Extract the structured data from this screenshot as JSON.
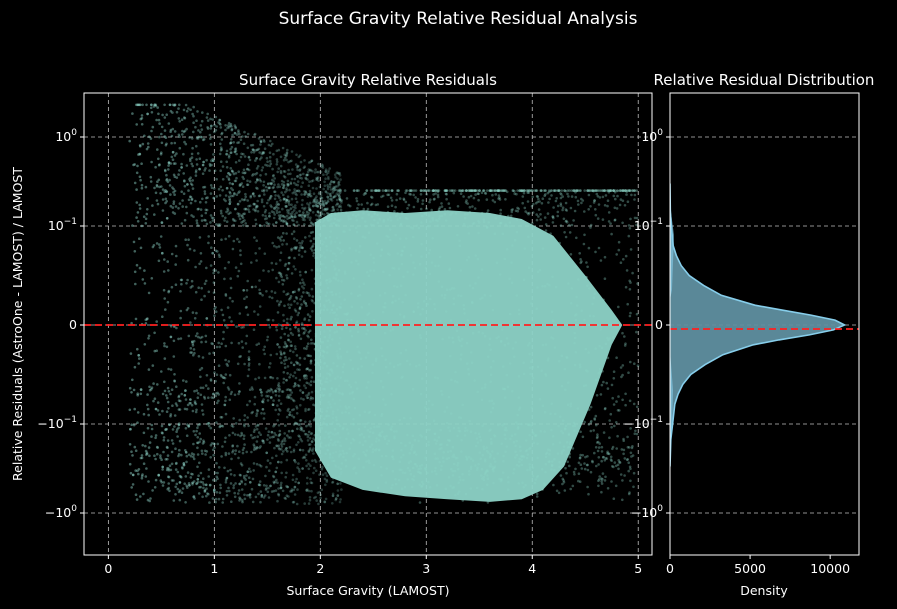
{
  "figure": {
    "suptitle": "Surface Gravity Relative Residual Analysis"
  },
  "chart_data": [
    {
      "type": "scatter",
      "title": "Surface Gravity Relative Residuals",
      "xlabel": "Surface Gravity (LAMOST)",
      "ylabel": "Relative Residuals (AstroOne - LAMOST) / LAMOST",
      "xlim": [
        -0.23,
        5.13
      ],
      "ylim": [
        -2.5,
        2.5
      ],
      "yscale": "symlog",
      "linthresh": 0.1,
      "x_ticks": [
        {
          "value": 0,
          "label": "0"
        },
        {
          "value": 1,
          "label": "1"
        },
        {
          "value": 2,
          "label": "2"
        },
        {
          "value": 3,
          "label": "3"
        },
        {
          "value": 4,
          "label": "4"
        },
        {
          "value": 5,
          "label": "5"
        }
      ],
      "y_ticks": [
        {
          "value": 1,
          "base": "10",
          "exp": "0",
          "sign": ""
        },
        {
          "value": 0.1,
          "base": "10",
          "exp": "−1",
          "sign": ""
        },
        {
          "value": 0,
          "base": "0",
          "exp": "",
          "sign": ""
        },
        {
          "value": -0.1,
          "base": "10",
          "exp": "−1",
          "sign": "−"
        },
        {
          "value": -1,
          "base": "10",
          "exp": "0",
          "sign": "−"
        }
      ],
      "reference_line": {
        "y": 0,
        "color": "#ff2020",
        "style": "dashed"
      },
      "point_color": "#8dd3c7",
      "grid": true,
      "dense_region": {
        "x_range": [
          1.9,
          4.9
        ],
        "y_range": [
          -0.75,
          0.15
        ]
      },
      "sparse_region": {
        "x_range": [
          0.2,
          1.9
        ],
        "y_range": [
          -0.8,
          2.3
        ]
      }
    },
    {
      "type": "histogram",
      "orientation": "horizontal",
      "title": "Relative Residual Distribution",
      "xlabel": "Density",
      "xlim": [
        0,
        11800
      ],
      "ylim": [
        -2.5,
        2.5
      ],
      "yscale": "symlog",
      "x_ticks": [
        {
          "value": 0,
          "label": "0"
        },
        {
          "value": 5000,
          "label": "5000"
        },
        {
          "value": 10000,
          "label": "10000"
        }
      ],
      "fill_color": "#5f8fa0",
      "kde_color": "#87ceeb",
      "mean_line": {
        "y": -0.002,
        "color": "#ff2020",
        "style": "dashed"
      },
      "grid": true,
      "density_profile": [
        {
          "y": -0.3,
          "d": 0
        },
        {
          "y": -0.15,
          "d": 50
        },
        {
          "y": -0.1,
          "d": 160
        },
        {
          "y": -0.08,
          "d": 300
        },
        {
          "y": -0.07,
          "d": 500
        },
        {
          "y": -0.06,
          "d": 800
        },
        {
          "y": -0.05,
          "d": 1300
        },
        {
          "y": -0.04,
          "d": 2200
        },
        {
          "y": -0.03,
          "d": 3300
        },
        {
          "y": -0.02,
          "d": 5200
        },
        {
          "y": -0.015,
          "d": 6800
        },
        {
          "y": -0.01,
          "d": 8700
        },
        {
          "y": -0.005,
          "d": 10200
        },
        {
          "y": 0,
          "d": 10900
        },
        {
          "y": 0.005,
          "d": 10300
        },
        {
          "y": 0.01,
          "d": 8800
        },
        {
          "y": 0.015,
          "d": 7000
        },
        {
          "y": 0.02,
          "d": 5300
        },
        {
          "y": 0.03,
          "d": 3200
        },
        {
          "y": 0.04,
          "d": 2100
        },
        {
          "y": 0.05,
          "d": 1200
        },
        {
          "y": 0.06,
          "d": 700
        },
        {
          "y": 0.07,
          "d": 400
        },
        {
          "y": 0.08,
          "d": 200
        },
        {
          "y": 0.1,
          "d": 80
        },
        {
          "y": 0.15,
          "d": 20
        },
        {
          "y": 0.3,
          "d": 0
        }
      ]
    }
  ]
}
